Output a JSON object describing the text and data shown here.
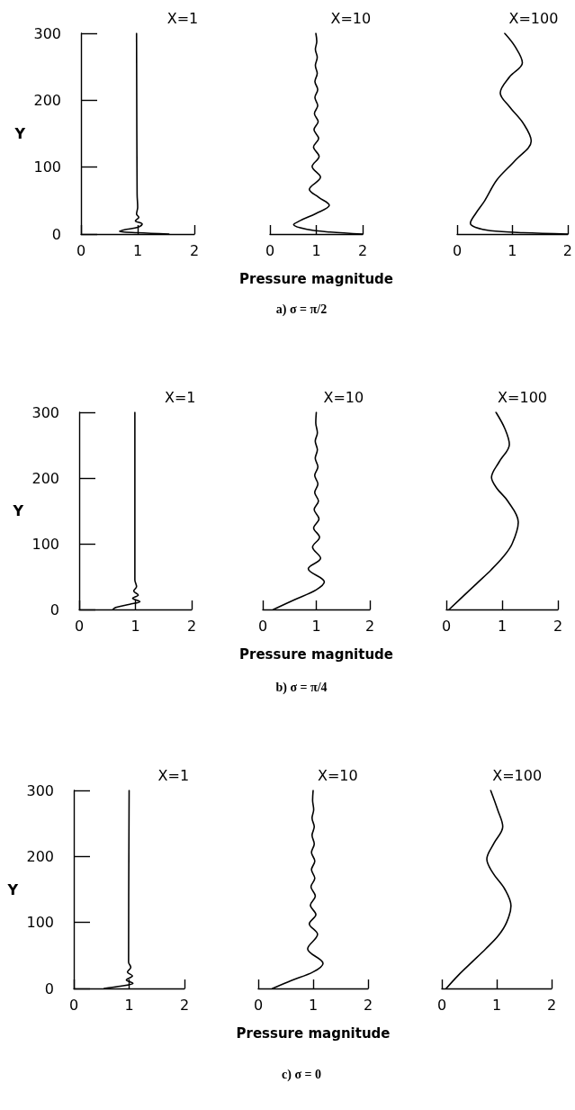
{
  "chart_data": [
    {
      "type": "line",
      "title": "X=1",
      "ylabel": "Y",
      "xlim": [
        0,
        2
      ],
      "xticks": [
        0,
        1,
        2
      ],
      "ylim": [
        0,
        300
      ],
      "yticks": [
        0,
        100,
        200,
        300
      ],
      "grid": false,
      "marker": "none",
      "line_style": "solid",
      "series": [
        {
          "color": "#000000",
          "x": [
            1.55,
            1.0,
            0.68,
            0.8,
            1.0,
            1.08,
            0.96,
            1.02,
            0.98,
            1.0,
            0.99,
            0.98
          ],
          "values": [
            0,
            2,
            4,
            7,
            10,
            15,
            20,
            25,
            30,
            40,
            60,
            300
          ]
        }
      ]
    },
    {
      "type": "line",
      "title": "X=10",
      "xlabel": "Pressure magnitude",
      "xlim": [
        0,
        2
      ],
      "xticks": [
        0,
        1,
        2
      ],
      "ylim": [
        0,
        300
      ],
      "yticks": [
        0,
        100,
        200,
        300
      ],
      "tick_labels": "x",
      "grid": false,
      "marker": "none",
      "line_style": "solid",
      "annotations": [
        "a) σ = π/2"
      ],
      "series": [
        {
          "color": "#000000",
          "x": [
            2.0,
            1.3,
            0.8,
            0.51,
            0.65,
            1.0,
            1.28,
            1.05,
            0.85,
            1.09,
            0.91,
            1.06,
            0.94,
            1.05,
            0.95,
            1.04,
            0.96,
            1.03,
            0.97,
            1.03,
            0.97,
            1.02,
            0.98,
            1.02,
            0.98,
            1.01,
            0.99
          ],
          "values": [
            0,
            3,
            7,
            14,
            20,
            31,
            43,
            55,
            67,
            85,
            101,
            116,
            130,
            143,
            156,
            168,
            180,
            192,
            204,
            216,
            228,
            240,
            252,
            264,
            276,
            288,
            300
          ]
        }
      ]
    },
    {
      "type": "line",
      "title": "X=100",
      "xlim": [
        0,
        2
      ],
      "xticks": [
        0,
        1,
        2
      ],
      "ylim": [
        0,
        300
      ],
      "yticks": [
        0,
        100,
        200,
        300
      ],
      "tick_labels": "x",
      "grid": false,
      "marker": "none",
      "line_style": "solid",
      "series": [
        {
          "color": "#000000",
          "x": [
            2.0,
            1.2,
            0.6,
            0.33,
            0.24,
            0.33,
            0.5,
            0.72,
            1.05,
            1.34,
            1.2,
            0.95,
            0.78,
            0.95,
            1.18,
            1.05,
            0.86
          ],
          "values": [
            0,
            2,
            5,
            10,
            16,
            30,
            50,
            81,
            110,
            139,
            165,
            190,
            211,
            235,
            256,
            280,
            300
          ]
        }
      ]
    },
    {
      "type": "line",
      "title": "X=1",
      "ylabel": "Y",
      "xlim": [
        0,
        2
      ],
      "xticks": [
        0,
        1,
        2
      ],
      "ylim": [
        0,
        300
      ],
      "yticks": [
        0,
        100,
        200,
        300
      ],
      "grid": false,
      "marker": "none",
      "line_style": "solid",
      "series": [
        {
          "color": "#000000",
          "x": [
            0.6,
            0.65,
            0.9,
            1.08,
            0.95,
            1.05,
            0.97,
            1.02,
            0.99,
            0.99
          ],
          "values": [
            0,
            3,
            8,
            12,
            17,
            22,
            28,
            35,
            45,
            300
          ]
        }
      ]
    },
    {
      "type": "line",
      "title": "X=10",
      "xlabel": "Pressure magnitude",
      "xlim": [
        0,
        2
      ],
      "xticks": [
        0,
        1,
        2
      ],
      "ylim": [
        0,
        300
      ],
      "yticks": [
        0,
        100,
        200,
        300
      ],
      "tick_labels": "x",
      "grid": false,
      "marker": "none",
      "line_style": "solid",
      "annotations": [
        "b) σ = π/4"
      ],
      "series": [
        {
          "color": "#000000",
          "x": [
            0.2,
            0.6,
            1.0,
            1.15,
            0.85,
            1.08,
            0.93,
            1.06,
            0.95,
            1.05,
            0.96,
            1.04,
            0.97,
            1.03,
            0.97,
            1.03,
            0.98,
            1.02,
            0.98,
            1.02,
            0.99,
            1.0
          ],
          "values": [
            0,
            15,
            30,
            42,
            62,
            78,
            95,
            110,
            124,
            138,
            152,
            165,
            178,
            191,
            204,
            217,
            230,
            243,
            256,
            269,
            284,
            300
          ]
        }
      ]
    },
    {
      "type": "line",
      "title": "X=100",
      "xlim": [
        0,
        2
      ],
      "xticks": [
        0,
        1,
        2
      ],
      "ylim": [
        0,
        300
      ],
      "yticks": [
        0,
        100,
        200,
        300
      ],
      "tick_labels": "x",
      "grid": false,
      "marker": "none",
      "line_style": "solid",
      "series": [
        {
          "color": "#000000",
          "x": [
            0.05,
            0.3,
            0.55,
            0.8,
            1.02,
            1.18,
            1.29,
            1.1,
            0.9,
            0.81,
            0.95,
            1.13,
            1.05,
            0.89
          ],
          "values": [
            0,
            20,
            40,
            60,
            80,
            100,
            133,
            165,
            185,
            201,
            225,
            251,
            275,
            300
          ]
        }
      ]
    },
    {
      "type": "line",
      "title": "X=1",
      "ylabel": "Y",
      "xlim": [
        0,
        2
      ],
      "xticks": [
        0,
        1,
        2
      ],
      "ylim": [
        0,
        300
      ],
      "yticks": [
        0,
        100,
        200,
        300
      ],
      "grid": false,
      "marker": "none",
      "line_style": "solid",
      "series": [
        {
          "color": "#000000",
          "x": [
            0.55,
            0.8,
            1.07,
            0.95,
            1.06,
            0.97,
            1.03,
            0.99,
            1.0
          ],
          "values": [
            0,
            3,
            8,
            13,
            19,
            25,
            32,
            40,
            300
          ]
        }
      ]
    },
    {
      "type": "line",
      "title": "X=10",
      "xlabel": "Pressure magnitude",
      "xlim": [
        0,
        2
      ],
      "xticks": [
        0,
        1,
        2
      ],
      "ylim": [
        0,
        300
      ],
      "yticks": [
        0,
        100,
        200,
        300
      ],
      "tick_labels": "x",
      "grid": false,
      "marker": "none",
      "line_style": "solid",
      "annotations": [
        "c) σ = 0"
      ],
      "series": [
        {
          "color": "#000000",
          "x": [
            0.26,
            0.6,
            1.0,
            1.18,
            0.9,
            1.08,
            0.93,
            1.05,
            0.95,
            1.04,
            0.96,
            1.03,
            0.97,
            1.03,
            0.97,
            1.02,
            0.98,
            1.02,
            0.98,
            1.01,
            0.99,
            1.0
          ],
          "values": [
            0,
            12,
            25,
            38,
            60,
            82,
            98,
            112,
            126,
            140,
            154,
            167,
            180,
            193,
            206,
            219,
            232,
            245,
            258,
            271,
            285,
            300
          ]
        }
      ]
    },
    {
      "type": "line",
      "title": "X=100",
      "xlim": [
        0,
        2
      ],
      "xticks": [
        0,
        1,
        2
      ],
      "ylim": [
        0,
        300
      ],
      "yticks": [
        0,
        100,
        200,
        300
      ],
      "tick_labels": "x",
      "grid": false,
      "marker": "none",
      "line_style": "solid",
      "series": [
        {
          "color": "#000000",
          "x": [
            0.08,
            0.3,
            0.55,
            0.8,
            1.03,
            1.18,
            1.26,
            1.15,
            0.93,
            0.82,
            0.95,
            1.11,
            1.02,
            0.89
          ],
          "values": [
            0,
            20,
            40,
            60,
            80,
            100,
            125,
            150,
            175,
            196,
            220,
            245,
            270,
            300
          ]
        }
      ]
    }
  ]
}
